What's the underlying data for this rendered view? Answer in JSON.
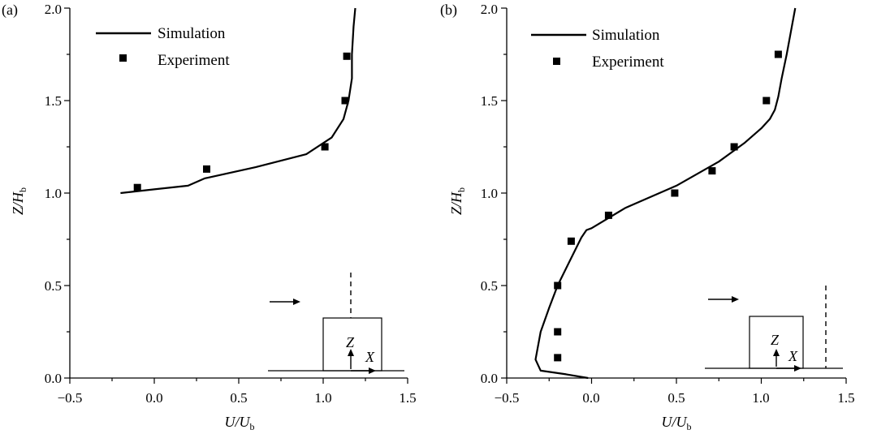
{
  "chart_data": [
    {
      "panel_label": "(a)",
      "type": "line",
      "xlabel": {
        "main": "U/U",
        "sub": "b"
      },
      "ylabel": {
        "main": "Z/H",
        "sub": "b"
      },
      "xlim": [
        -0.5,
        1.5
      ],
      "ylim": [
        0.0,
        2.0
      ],
      "xticks": [
        "−0.5",
        "0.0",
        "0.5",
        "1.0",
        "1.5"
      ],
      "yticks": [
        "0.0",
        "0.5",
        "1.0",
        "1.5",
        "2.0"
      ],
      "legend": {
        "simulation": "Simulation",
        "experiment": "Experiment"
      },
      "series": [
        {
          "name": "Simulation",
          "kind": "line",
          "x": [
            -0.2,
            0.0,
            0.2,
            0.3,
            0.6,
            0.9,
            1.05,
            1.12,
            1.15,
            1.17,
            1.17,
            1.18,
            1.19
          ],
          "y": [
            1.0,
            1.02,
            1.04,
            1.08,
            1.14,
            1.21,
            1.3,
            1.4,
            1.5,
            1.62,
            1.75,
            1.9,
            2.0
          ]
        },
        {
          "name": "Experiment",
          "kind": "scatter",
          "x": [
            -0.1,
            0.31,
            1.01,
            1.13,
            1.14
          ],
          "y": [
            1.03,
            1.13,
            1.25,
            1.5,
            1.74
          ]
        }
      ],
      "inset": {
        "z_label": "Z",
        "x_label": "X"
      }
    },
    {
      "panel_label": "(b)",
      "type": "line",
      "xlabel": {
        "main": "U/U",
        "sub": "b"
      },
      "ylabel": {
        "main": "Z/H",
        "sub": "b"
      },
      "xlim": [
        -0.5,
        1.5
      ],
      "ylim": [
        0.0,
        2.0
      ],
      "xticks": [
        "−0.5",
        "0.0",
        "0.5",
        "1.0",
        "1.5"
      ],
      "yticks": [
        "0.0",
        "0.5",
        "1.0",
        "1.5",
        "2.0"
      ],
      "legend": {
        "simulation": "Simulation",
        "experiment": "Experiment"
      },
      "series": [
        {
          "name": "Simulation",
          "kind": "line",
          "x": [
            -0.02,
            -0.15,
            -0.3,
            -0.33,
            -0.3,
            -0.25,
            -0.2,
            -0.13,
            -0.06,
            -0.03,
            0.0,
            0.2,
            0.5,
            0.75,
            0.9,
            1.0,
            1.05,
            1.08,
            1.1,
            1.12,
            1.15,
            1.18,
            1.2
          ],
          "y": [
            0.0,
            0.02,
            0.04,
            0.1,
            0.25,
            0.38,
            0.5,
            0.63,
            0.76,
            0.8,
            0.81,
            0.92,
            1.04,
            1.17,
            1.27,
            1.35,
            1.4,
            1.45,
            1.52,
            1.62,
            1.75,
            1.9,
            2.0
          ]
        },
        {
          "name": "Experiment",
          "kind": "scatter",
          "x": [
            -0.2,
            -0.2,
            -0.2,
            -0.12,
            0.1,
            0.49,
            0.71,
            0.84,
            1.03,
            1.1
          ],
          "y": [
            0.11,
            0.25,
            0.5,
            0.74,
            0.88,
            1.0,
            1.12,
            1.25,
            1.5,
            1.75
          ]
        }
      ],
      "inset": {
        "z_label": "Z",
        "x_label": "X"
      }
    }
  ]
}
